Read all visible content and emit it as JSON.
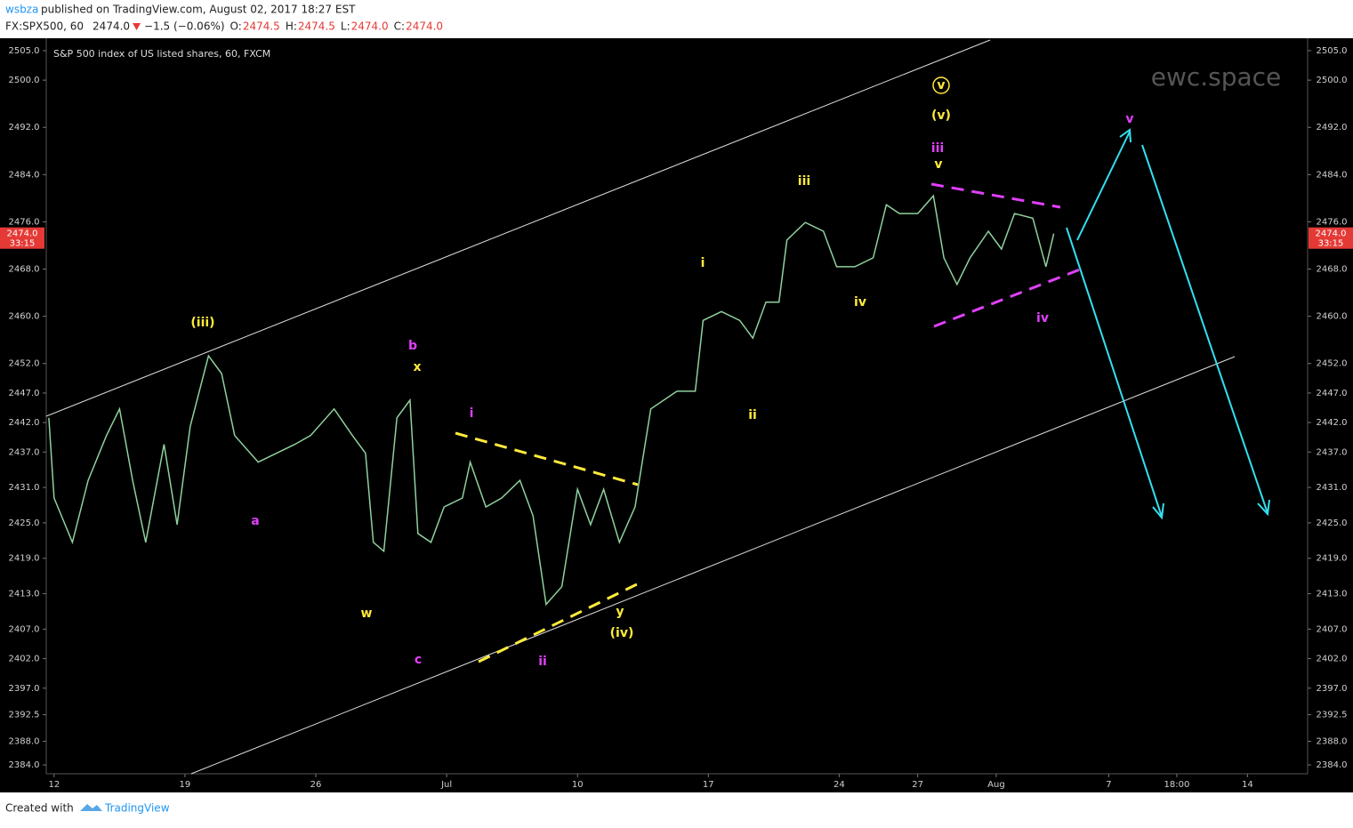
{
  "header": {
    "author": "wsbza",
    "published": "published on TradingView.com, August 02, 2017 18:27 EST"
  },
  "symbol_bar": {
    "symbol": "FX:SPX500, 60",
    "last": "2474.0",
    "change": "−1.5 (−0.06%)",
    "open_label": "O:",
    "open": "2474.5",
    "high_label": "H:",
    "high": "2474.5",
    "low_label": "L:",
    "low": "2474.0",
    "close_label": "C:",
    "close": "2474.0"
  },
  "chart_data": {
    "type": "line",
    "title": "S&P 500 index of US listed shares, 60, FXCM",
    "color": "#8fd19e",
    "x": [
      -0.2,
      0,
      0.7,
      1.3,
      2,
      2.5,
      3,
      3.5,
      4.2,
      4.7,
      5.2,
      5.9,
      6.4,
      6.9,
      7.8,
      8.5,
      9.2,
      9.8,
      10.7,
      11.4,
      11.9,
      12.2,
      12.6,
      13.1,
      13.6,
      13.9,
      14.4,
      14.9,
      15.6,
      15.9,
      16.5,
      17.1,
      17.8,
      18.3,
      18.8,
      19.4,
      20,
      20.5,
      21,
      21.6,
      22.2,
      22.8,
      23.8,
      24.5,
      24.8,
      25.5,
      26.2,
      26.7,
      27.2,
      27.7,
      28,
      28.7,
      29.4,
      29.9,
      30.6,
      31.3,
      31.8,
      32.3,
      33,
      33.6,
      34,
      34.5,
      35,
      35.7,
      36.2,
      36.7,
      37.4,
      37.9,
      38.2
    ],
    "values": [
      2442.8,
      2429.2,
      2421.7,
      2432.2,
      2439.8,
      2444.3,
      2432.2,
      2421.7,
      2438.3,
      2424.7,
      2441.3,
      2453.3,
      2450.3,
      2439.8,
      2435.3,
      2436.8,
      2438.3,
      2439.8,
      2444.3,
      2439.8,
      2436.8,
      2421.7,
      2420.2,
      2442.8,
      2445.8,
      2423.2,
      2421.7,
      2427.7,
      2429.2,
      2435.3,
      2427.7,
      2429.2,
      2432.2,
      2426.2,
      2411.2,
      2414.2,
      2430.7,
      2424.7,
      2430.7,
      2421.7,
      2427.7,
      2444.3,
      2447.3,
      2447.3,
      2459.3,
      2460.8,
      2459.3,
      2456.3,
      2462.4,
      2462.4,
      2472.9,
      2475.9,
      2474.4,
      2468.4,
      2468.4,
      2469.9,
      2478.9,
      2477.4,
      2477.4,
      2480.4,
      2469.9,
      2465.4,
      2469.9,
      2474.4,
      2471.4,
      2477.4,
      2476.6,
      2468.4,
      2474.0
    ],
    "xlim": [
      -0.3,
      47.9
    ],
    "xticks": [
      {
        "value": 0,
        "label": "12"
      },
      {
        "value": 5,
        "label": "19"
      },
      {
        "value": 10,
        "label": "26"
      },
      {
        "value": 15,
        "label": "Jul"
      },
      {
        "value": 20,
        "label": "10"
      },
      {
        "value": 25,
        "label": "17"
      },
      {
        "value": 30,
        "label": "24"
      },
      {
        "value": 33,
        "label": "27"
      },
      {
        "value": 36,
        "label": "Aug"
      },
      {
        "value": 40.3,
        "label": "7"
      },
      {
        "value": 42.9,
        "label": "18:00"
      },
      {
        "value": 45.6,
        "label": "14"
      }
    ],
    "ylim": [
      2382.5,
      2506.8
    ],
    "yticks": [
      {
        "value": 2505,
        "label": "2505.0"
      },
      {
        "value": 2500,
        "label": "2500.0"
      },
      {
        "value": 2492,
        "label": "2492.0"
      },
      {
        "value": 2484,
        "label": "2484.0"
      },
      {
        "value": 2476,
        "label": "2476.0"
      },
      {
        "value": 2468,
        "label": "2468.0"
      },
      {
        "value": 2460,
        "label": "2460.0"
      },
      {
        "value": 2452,
        "label": "2452.0"
      },
      {
        "value": 2447,
        "label": "2447.0"
      },
      {
        "value": 2442,
        "label": "2442.0"
      },
      {
        "value": 2437,
        "label": "2437.0"
      },
      {
        "value": 2431,
        "label": "2431.0"
      },
      {
        "value": 2425,
        "label": "2425.0"
      },
      {
        "value": 2419,
        "label": "2419.0"
      },
      {
        "value": 2413,
        "label": "2413.0"
      },
      {
        "value": 2407,
        "label": "2407.0"
      },
      {
        "value": 2402,
        "label": "2402.0"
      },
      {
        "value": 2397,
        "label": "2397.0"
      },
      2392.5,
      {
        "value": 2388,
        "label": "2388.0"
      },
      {
        "value": 2384,
        "label": "2384.0"
      }
    ],
    "price_tag": {
      "value": 2474.0,
      "label": "2474.0"
    },
    "countdown": "33:15",
    "watermark": "ewc.space",
    "annotations": [
      {
        "text": "(iii)",
        "color": "#ffeb3b"
      },
      {
        "text": "a",
        "color": "#e040fb"
      },
      {
        "text": "b",
        "color": "#e040fb"
      },
      {
        "text": "x",
        "color": "#ffeb3b"
      },
      {
        "text": "w",
        "color": "#ffeb3b"
      },
      {
        "text": "c",
        "color": "#e040fb"
      },
      {
        "text": "i",
        "color": "#e040fb"
      },
      {
        "text": "ii",
        "color": "#e040fb"
      },
      {
        "text": "y",
        "color": "#ffeb3b"
      },
      {
        "text": "(iv)",
        "color": "#ffeb3b"
      },
      {
        "text": "i",
        "color": "#ffeb3b"
      },
      {
        "text": "ii",
        "color": "#ffeb3b"
      },
      {
        "text": "iii",
        "color": "#ffeb3b"
      },
      {
        "text": "iv",
        "color": "#ffeb3b"
      },
      {
        "text": "v",
        "color": "#ffeb3b",
        "circled": true
      },
      {
        "text": "(v)",
        "color": "#ffeb3b"
      },
      {
        "text": "iii",
        "color": "#e040fb"
      },
      {
        "text": "v",
        "color": "#ffeb3b"
      },
      {
        "text": "iv",
        "color": "#e040fb"
      },
      {
        "text": "v",
        "color": "#e040fb"
      }
    ]
  },
  "footer": {
    "created": "Created with",
    "brand": "TradingView"
  }
}
